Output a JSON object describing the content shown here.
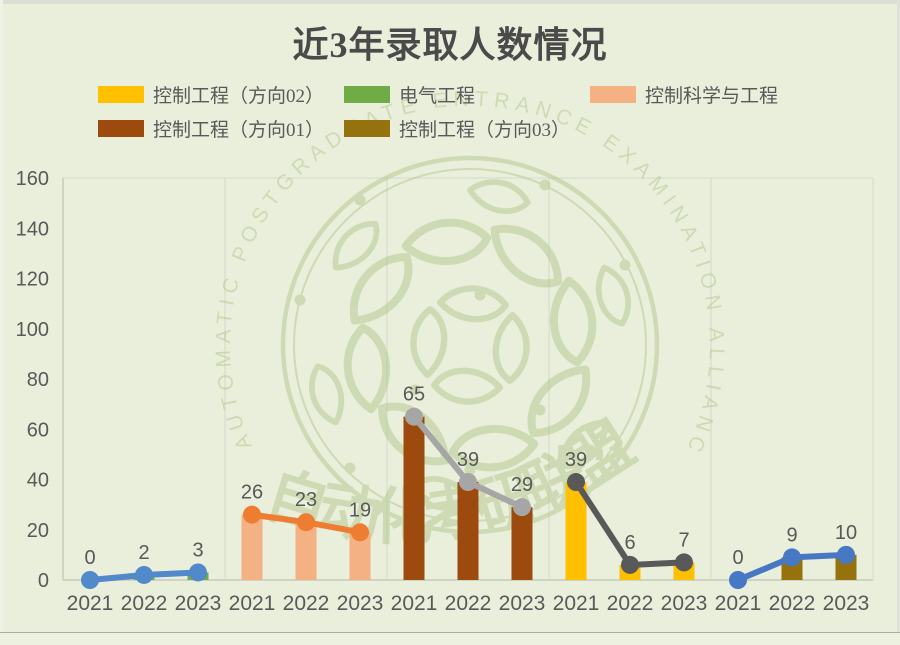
{
  "title": "近3年录取人数情况",
  "legend": {
    "items": [
      {
        "label": "控制工程（方向02）",
        "color": "#FFC000"
      },
      {
        "label": "电气工程",
        "color": "#6FAC46"
      },
      {
        "label": "控制科学与工程",
        "color": "#F4B183"
      },
      {
        "label": "控制工程（方向01）",
        "color": "#9C4A0E"
      },
      {
        "label": "控制工程（方向03）",
        "color": "#95720E"
      }
    ]
  },
  "watermark": {
    "ring_text": "AUTOMATIC POSTGRADUATE ENTRANCE EXAMINATION ALLIANCE",
    "cjk_text": "自动化考研联盟",
    "color": "#B3C78C"
  },
  "chart_data": {
    "type": "bar",
    "subtype": "grouped bars with line overlay per group",
    "title": "近3年录取人数情况",
    "categories": [
      "2021",
      "2022",
      "2023"
    ],
    "ylim": [
      0,
      160
    ],
    "yticks": [
      0,
      20,
      40,
      60,
      80,
      100,
      120,
      140,
      160
    ],
    "grid": "vertical separators between groups",
    "legend_position": "top",
    "groups": [
      {
        "name": "电气工程",
        "bar_color": "#6FAC46",
        "line_color": "#5189CB",
        "values": [
          0,
          2,
          3
        ]
      },
      {
        "name": "控制科学与工程",
        "bar_color": "#F4B183",
        "line_color": "#ED7D31",
        "values": [
          26,
          23,
          19
        ]
      },
      {
        "name": "控制工程（方向01）",
        "bar_color": "#9C4A0E",
        "line_color": "#A6A6A6",
        "values": [
          65,
          39,
          29
        ]
      },
      {
        "name": "控制工程（方向02）",
        "bar_color": "#FFC000",
        "line_color": "#595959",
        "values": [
          39,
          6,
          7
        ]
      },
      {
        "name": "控制工程（方向03）",
        "bar_color": "#95720E",
        "line_color": "#4678C4",
        "values": [
          0,
          9,
          10
        ]
      }
    ]
  },
  "colors": {
    "background": "#E9EFDB",
    "axis_text": "#595959",
    "title_text": "#4A4A4A",
    "axis_line": "#C6CAB9",
    "gridline": "#D5D7C9",
    "plot_border": "#D6D9C9"
  }
}
